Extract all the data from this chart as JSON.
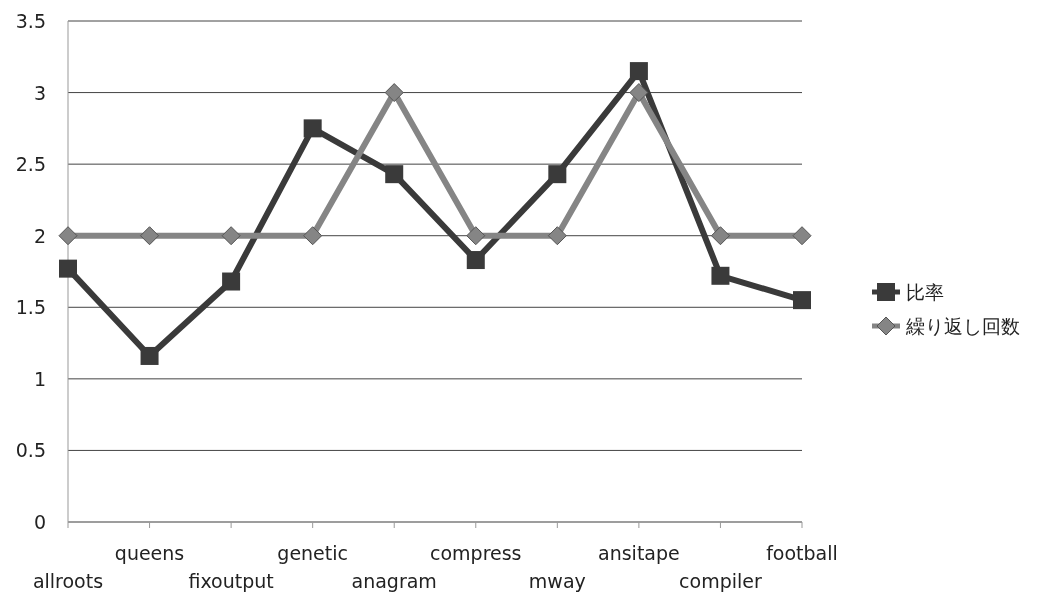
{
  "chart_data": {
    "type": "line",
    "categories": [
      "allroots",
      "queens",
      "fixoutput",
      "genetic",
      "anagram",
      "compress",
      "mway",
      "ansitape",
      "compiler",
      "football"
    ],
    "series": [
      {
        "name": "比率",
        "color": "#3a3a3a",
        "marker": "square",
        "values": [
          1.77,
          1.16,
          1.68,
          2.75,
          2.43,
          1.83,
          2.43,
          3.15,
          1.72,
          1.55
        ]
      },
      {
        "name": "繰り返し回数",
        "color": "#858585",
        "marker": "diamond",
        "values": [
          2,
          2,
          2,
          2,
          3,
          2,
          2,
          3,
          2,
          2
        ]
      }
    ],
    "ylim": [
      0,
      3.5
    ],
    "yticks": [
      0,
      0.5,
      1,
      1.5,
      2,
      2.5,
      3,
      3.5
    ],
    "grid": "y",
    "legend": "right"
  }
}
